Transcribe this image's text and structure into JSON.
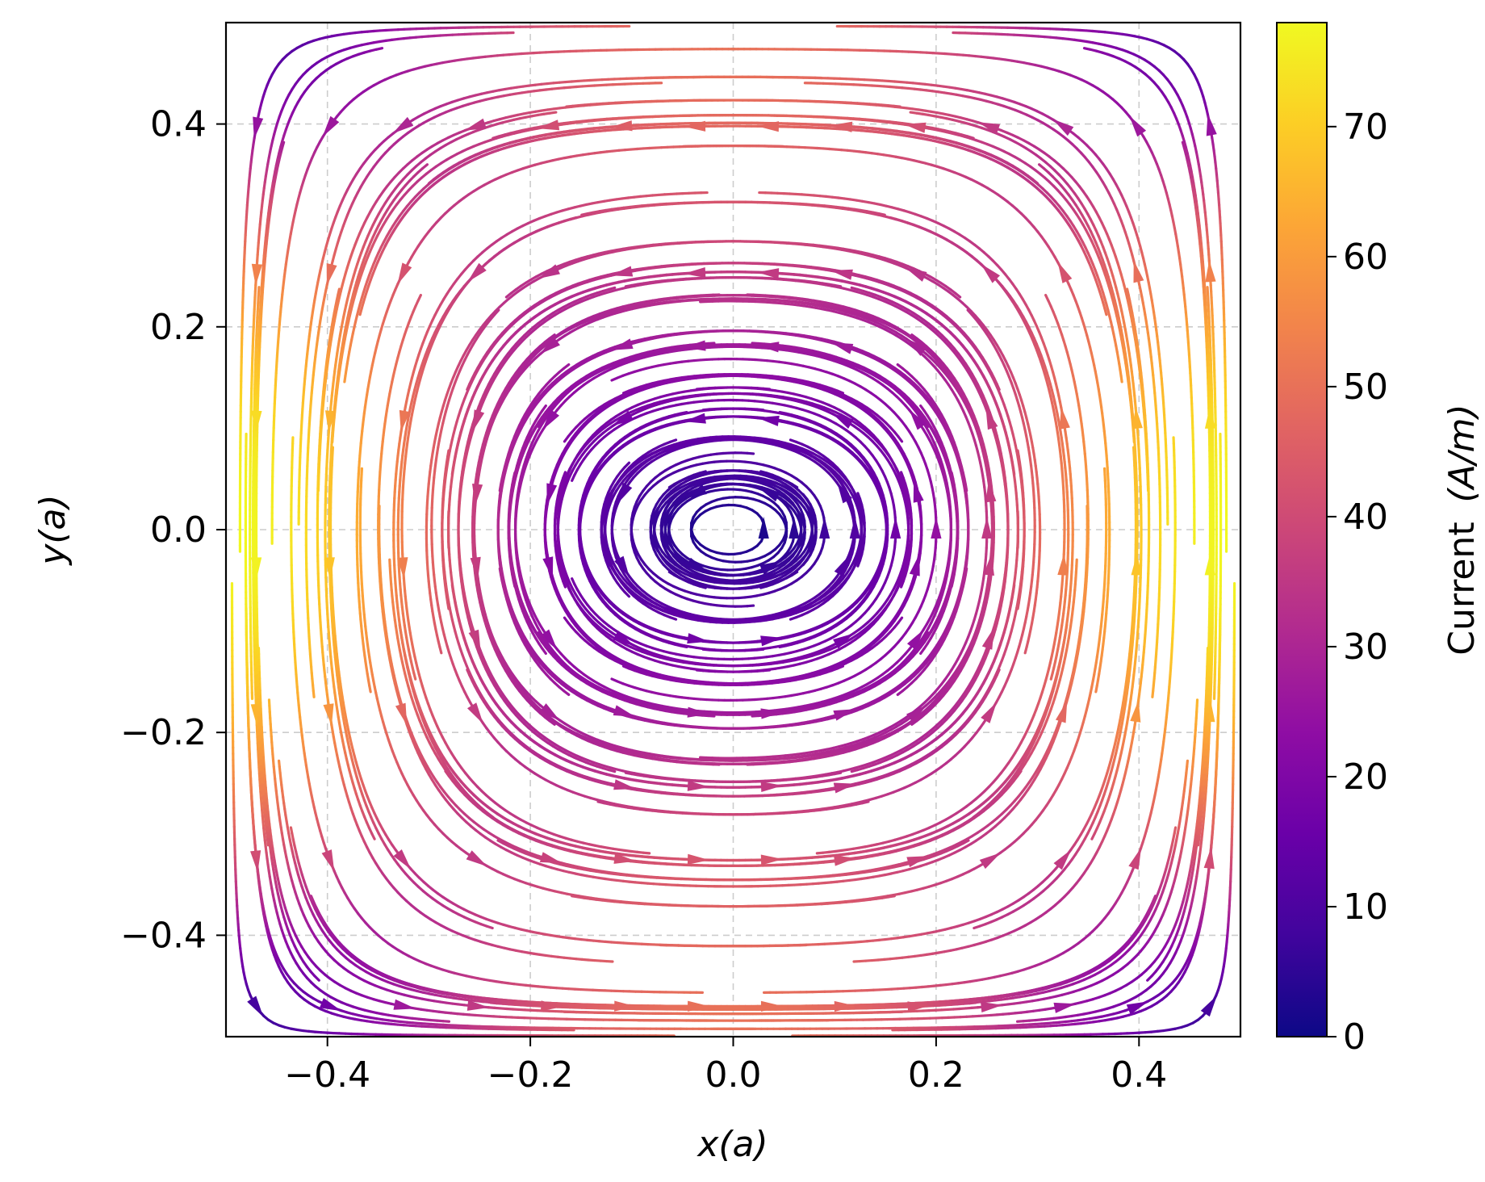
{
  "chart_data": {
    "type": "streamplot",
    "xlabel": "x(a)",
    "ylabel": "y(a)",
    "xlim": [
      -0.5,
      0.5
    ],
    "ylim": [
      -0.5,
      0.5
    ],
    "x_ticks": [
      -0.4,
      -0.2,
      0.0,
      0.2,
      0.4
    ],
    "y_ticks": [
      -0.4,
      -0.2,
      0.0,
      0.2,
      0.4
    ],
    "x_tick_labels": [
      "−0.4",
      "−0.2",
      "0.0",
      "0.2",
      "0.4"
    ],
    "y_tick_labels": [
      "−0.4",
      "−0.2",
      "0.0",
      "0.2",
      "0.4"
    ],
    "grid": true,
    "colormap": "plasma",
    "colorbar": {
      "label": "Current",
      "label_units": "(A/m)",
      "range": [
        0,
        78
      ],
      "ticks": [
        0,
        10,
        20,
        30,
        40,
        50,
        60,
        70
      ],
      "tick_labels": [
        "0",
        "10",
        "20",
        "30",
        "40",
        "50",
        "60",
        "70"
      ]
    },
    "field": {
      "description": "counter-clockwise vortex centered at the origin, saddle points near x = ±0.4, y = 0",
      "center": [
        0.0,
        0.0
      ],
      "saddles": [
        [
          -0.4,
          0.0
        ],
        [
          0.4,
          0.0
        ]
      ],
      "max_current_A_per_m": 78
    }
  },
  "colors": {
    "background": "#ffffff",
    "grid": "#cccccc",
    "axes": "#000000"
  }
}
